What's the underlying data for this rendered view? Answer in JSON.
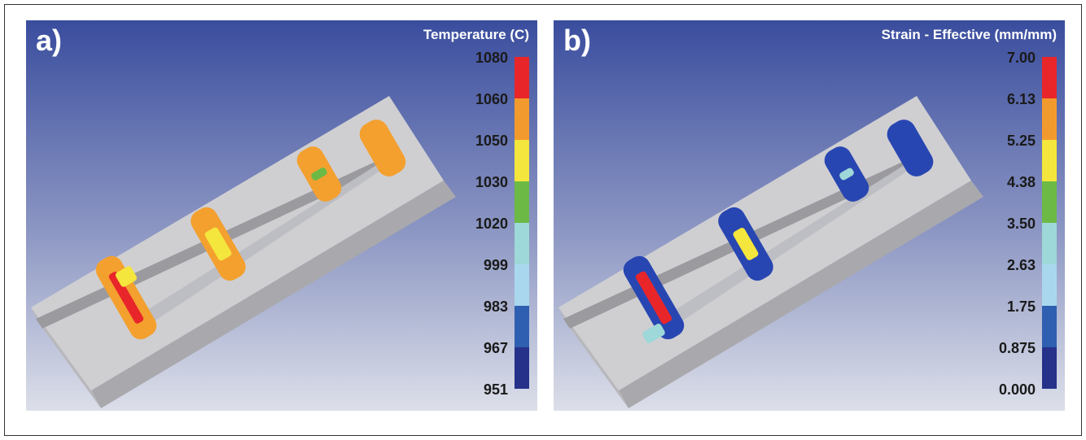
{
  "panels": [
    {
      "label": "a)",
      "title": "Temperature (C)",
      "scale": [
        "1080",
        "1060",
        "1050",
        "1030",
        "1020",
        "999",
        "983",
        "967",
        "951"
      ]
    },
    {
      "label": "b)",
      "title": "Strain - Effective (mm/mm)",
      "scale": [
        "7.00",
        "6.13",
        "5.25",
        "4.38",
        "3.50",
        "2.63",
        "1.75",
        "0.875",
        "0.000"
      ]
    }
  ]
}
